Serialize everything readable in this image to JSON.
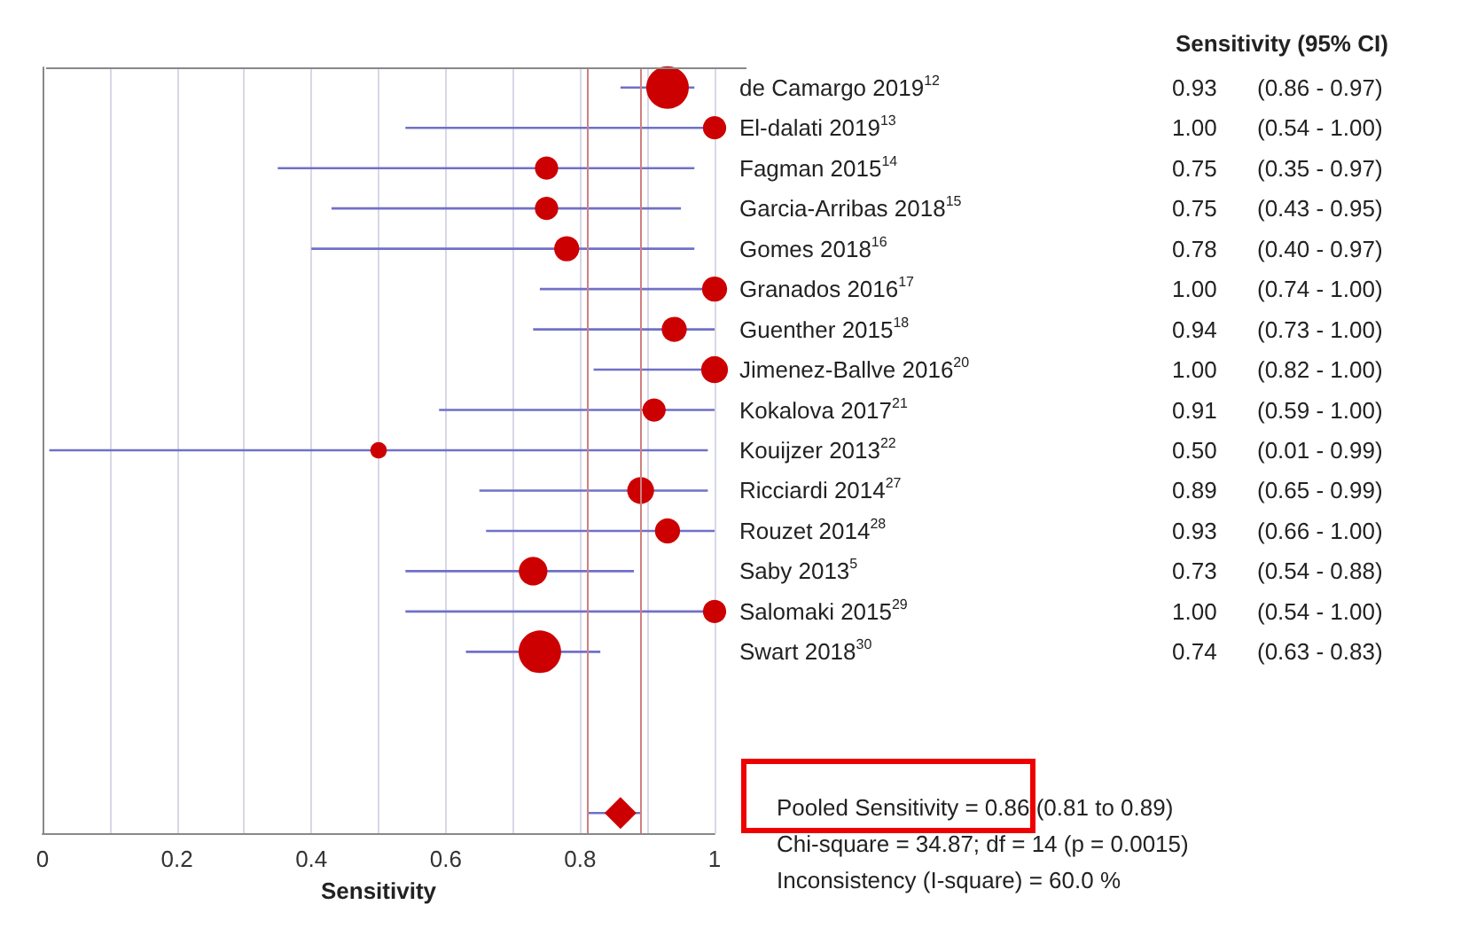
{
  "chart_data": {
    "type": "bubble",
    "orientation": "horizontal",
    "xlabel": "Sensitivity",
    "xlim": [
      0,
      1
    ],
    "xticks": [
      0,
      {
        "value": 0.1,
        "label": null
      },
      0.2,
      {
        "value": 0.3,
        "label": null
      },
      0.4,
      {
        "value": 0.5,
        "label": null
      },
      0.6,
      {
        "value": 0.7,
        "label": null
      },
      0.8,
      {
        "value": 0.9,
        "label": null
      },
      1
    ],
    "grid": "x",
    "categories": [
      "de Camargo 2019$^{12}$",
      "El-dalati 2019$^{13}$",
      "Fagman 2015$^{14}$",
      "Garcia-Arribas 2018$^{15}$",
      "Gomes 2018$^{16}$",
      "Granados 2016$^{17}$",
      "Guenther 2015$^{18}$",
      "Jimenez-Ballve 2016$^{20}$",
      "Kokalova 2017$^{21}$",
      "Kouijzer 2013$^{22}$",
      "Ricciardi 2014$^{27}$",
      "Rouzet 2014$^{28}$",
      "Saby 2013$^{5}$",
      "Salomaki 2015$^{29}$",
      "Swart 2018$^{30}$",
      null,
      null,
      null,
      null
    ],
    "series": [
      {
        "color": "#cc0000",
        "marker": "circle",
        "values": [
          0.93,
          1.0,
          0.75,
          0.75,
          0.78,
          1.0,
          0.94,
          1.0,
          0.91,
          0.5,
          0.89,
          0.93,
          0.73,
          1.0,
          0.74,
          null,
          null,
          null,
          null
        ],
        "errors": [
          [
            0.86,
            0.97
          ],
          [
            0.54,
            1.0
          ],
          [
            0.35,
            0.97
          ],
          [
            0.43,
            0.95
          ],
          [
            0.4,
            0.97
          ],
          [
            0.74,
            1.0
          ],
          [
            0.73,
            1.0
          ],
          [
            0.82,
            1.0
          ],
          [
            0.59,
            1.0
          ],
          [
            0.01,
            0.99
          ],
          [
            0.65,
            0.99
          ],
          [
            0.66,
            1.0
          ],
          [
            0.54,
            0.88
          ],
          [
            0.54,
            1.0
          ],
          [
            0.63,
            0.83
          ],
          null,
          null,
          null,
          null
        ],
        "sizes": [
          1,
          0.3,
          0.3,
          0.3,
          0.35,
          0.35,
          0.35,
          0.4,
          0.3,
          0.15,
          0.4,
          0.35,
          0.45,
          0.3,
          1,
          null,
          null,
          null,
          null
        ],
        "value_labels": [
          "0.93 (0.86 - 0.97)",
          "1.00 (0.54 - 1.00)",
          "0.75 (0.35 - 0.97)",
          "0.75 (0.43 - 0.95)",
          "0.78 (0.40 - 0.97)",
          "1.00 (0.74 - 1.00)",
          "0.94 (0.73 - 1.00)",
          "1.00 (0.82 - 1.00)",
          "0.91 (0.59 - 1.00)",
          "0.50 (0.01 - 0.99)",
          "0.89 (0.65 - 0.99)",
          "0.93 (0.66 - 1.00)",
          "0.73 (0.54 - 0.88)",
          "1.00 (0.54 - 1.00)",
          "0.74 (0.63 - 0.83)",
          null,
          null,
          null,
          null
        ]
      },
      {
        "type": "scatter",
        "color": "#cc0000",
        "marker": "diamond",
        "values": [
          null,
          null,
          null,
          null,
          null,
          null,
          null,
          null,
          null,
          null,
          null,
          null,
          null,
          null,
          null,
          null,
          null,
          null,
          0.86
        ],
        "errors": [
          null,
          null,
          null,
          null,
          null,
          null,
          null,
          null,
          null,
          null,
          null,
          null,
          null,
          null,
          null,
          null,
          null,
          null,
          [
            0.81,
            0.89
          ]
        ]
      }
    ],
    "ref_lines": [
      {
        "axis": "x",
        "value": 0.81,
        "color": "#d08080"
      },
      {
        "axis": "x",
        "value": 0.89,
        "color": "#d08080"
      }
    ],
    "annotations": [
      "Sensitivity (95% CI)",
      "Pooled Sensitivity = 0.86 (0.81 to 0.89)",
      "Chi-square = 34.87; df = 14 (p = 0.0015)",
      "Inconsistency (I-square) = 60.0 %"
    ]
  }
}
